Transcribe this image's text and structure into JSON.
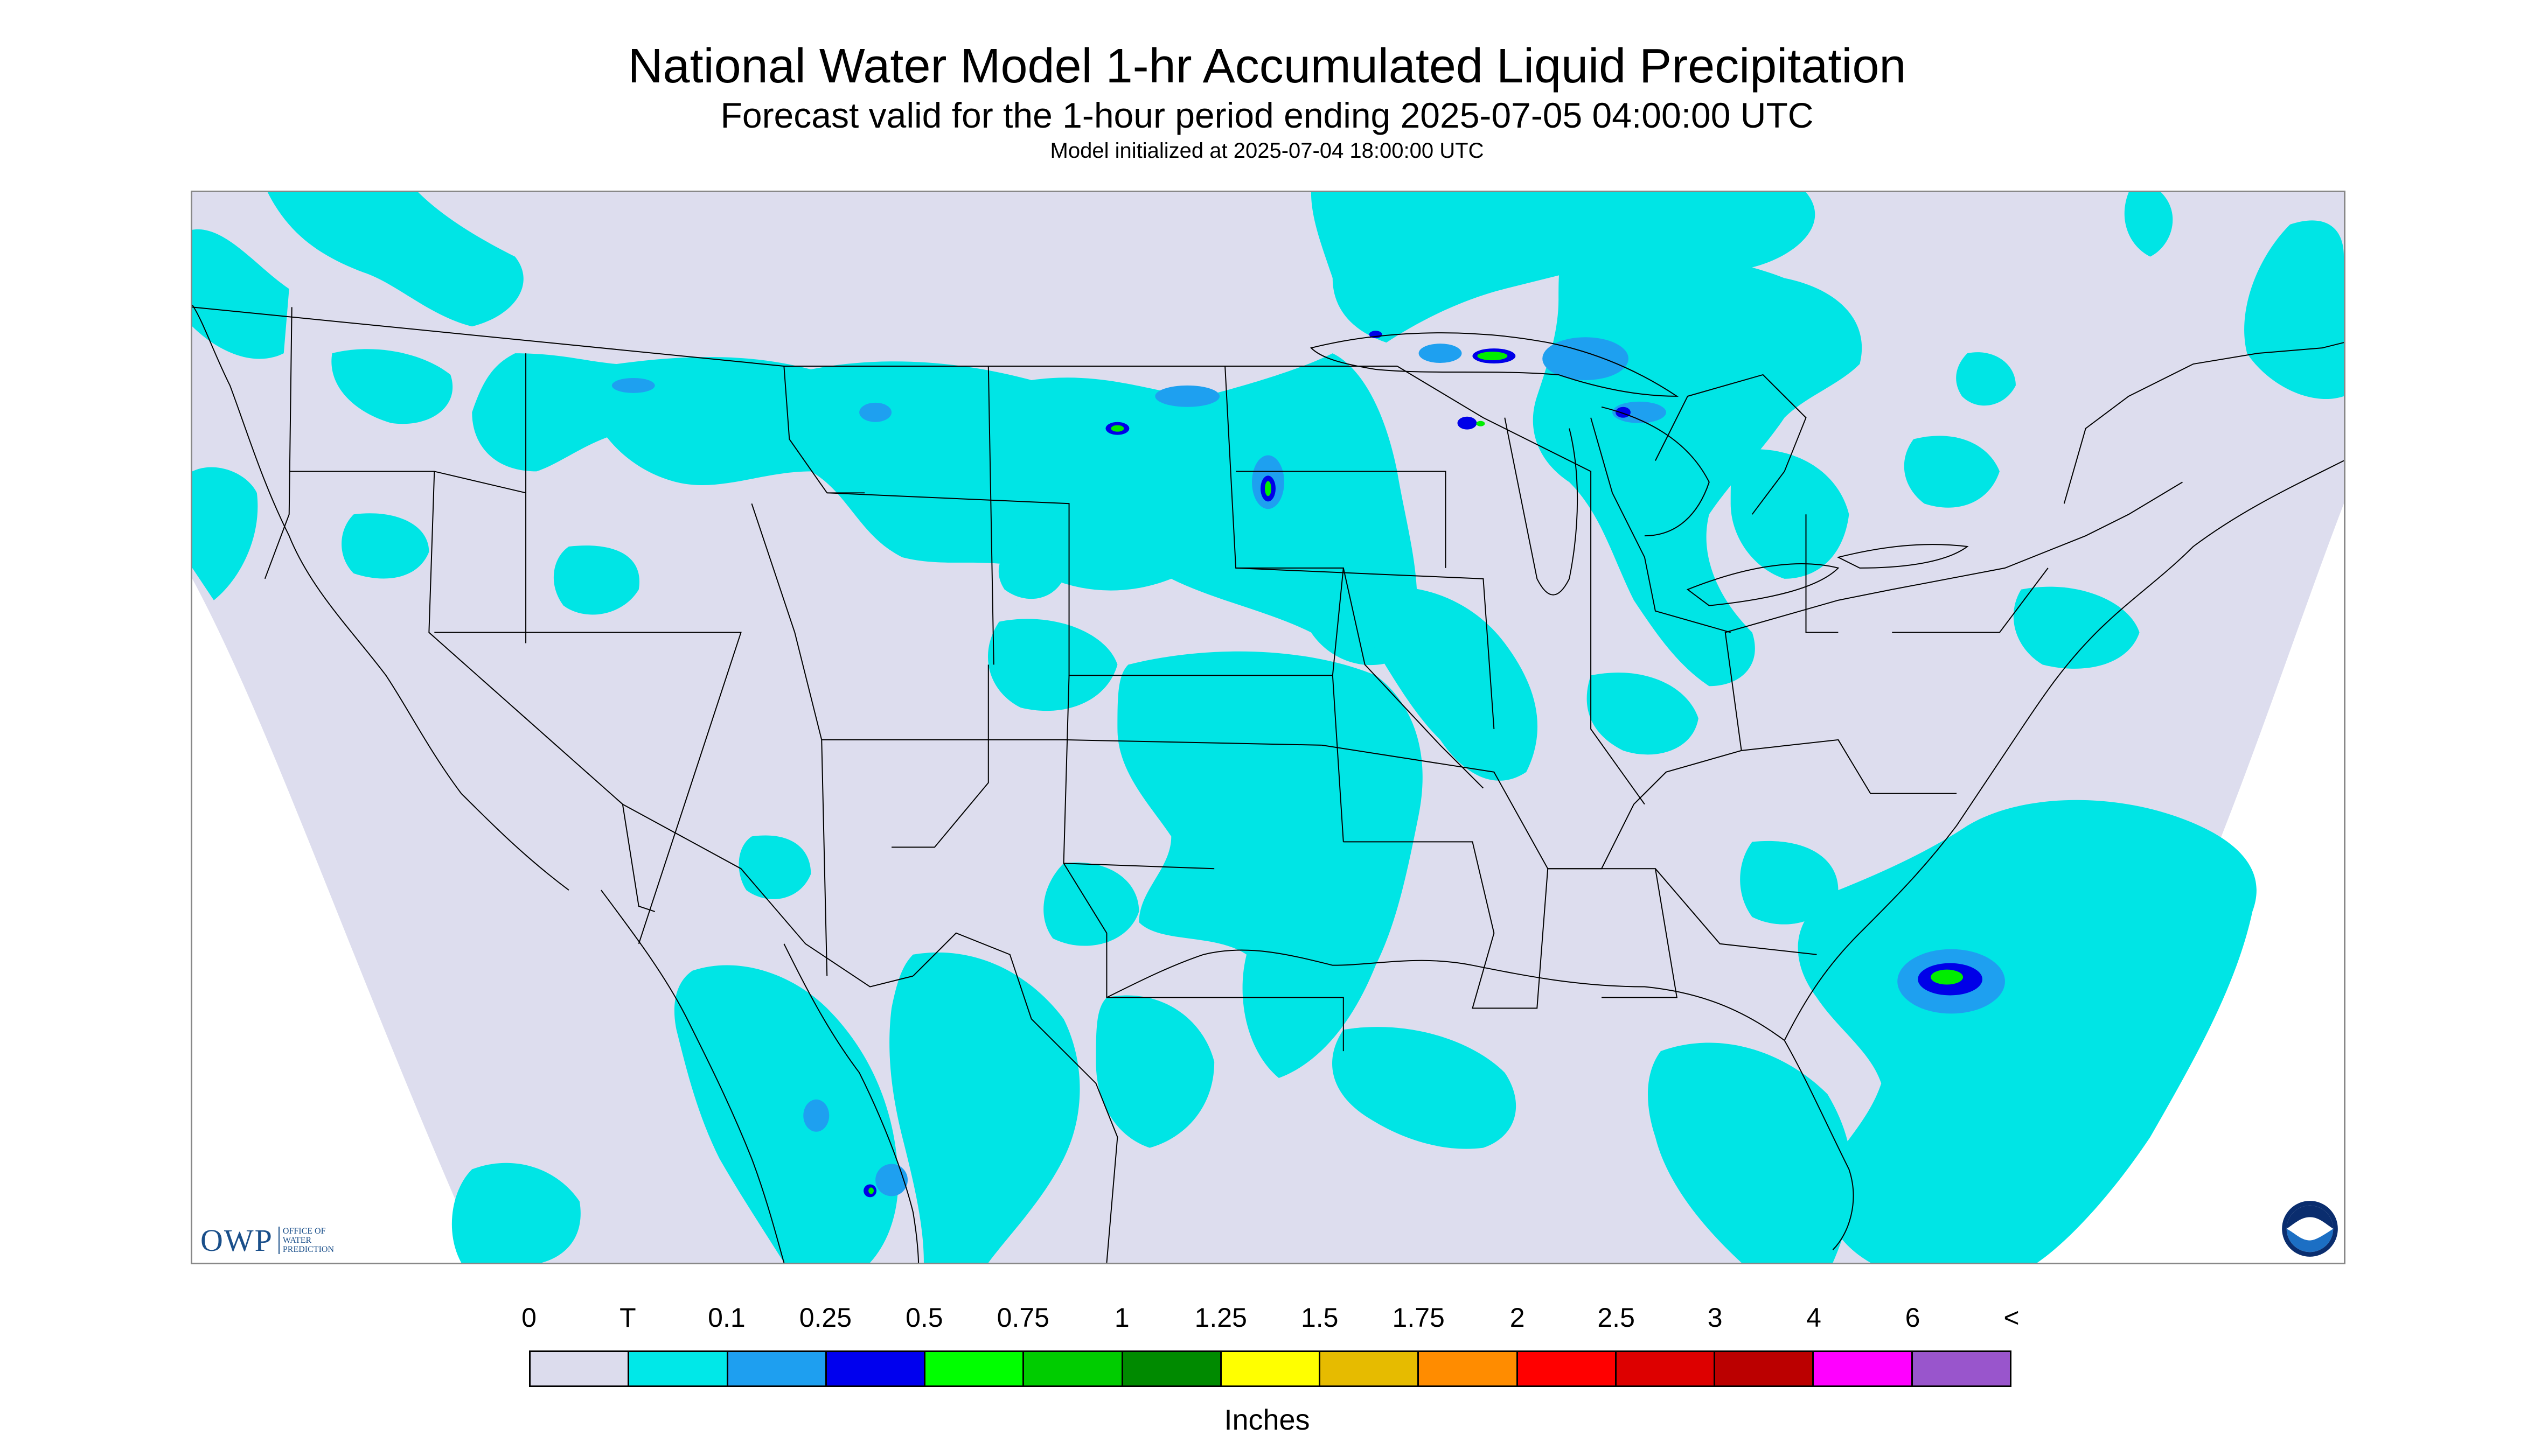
{
  "header": {
    "title": "National Water Model 1-hr Accumulated Liquid Precipitation",
    "subtitle": "Forecast valid for the 1-hour period ending 2025-07-05 04:00:00 UTC",
    "init": "Model initialized at 2025-07-04 18:00:00 UTC"
  },
  "map": {
    "colors": {
      "background": "#ddddee",
      "trace": "#00e5e5",
      "light": "#1ea0f0",
      "med": "#0000e8",
      "heavy": "#00ee00",
      "boundary": "#000000"
    }
  },
  "logos": {
    "owp": {
      "mark": "OWP",
      "text": [
        "OFFICE OF",
        "WATER",
        "PREDICTION"
      ]
    },
    "noaa": {
      "text": "NOAA"
    }
  },
  "legend": {
    "labels": [
      "0",
      "T",
      "0.1",
      "0.25",
      "0.5",
      "0.75",
      "1",
      "1.25",
      "1.5",
      "1.75",
      "2",
      "2.5",
      "3",
      "4",
      "6",
      "<"
    ],
    "colors": [
      "#dcdced",
      "#00e8e8",
      "#1e9ff0",
      "#0000ee",
      "#00ff00",
      "#00cc00",
      "#008a00",
      "#ffff00",
      "#e6bb00",
      "#ff8c00",
      "#ff0000",
      "#dd0000",
      "#bb0000",
      "#ff00ff",
      "#9955cc"
    ],
    "units": "Inches"
  }
}
